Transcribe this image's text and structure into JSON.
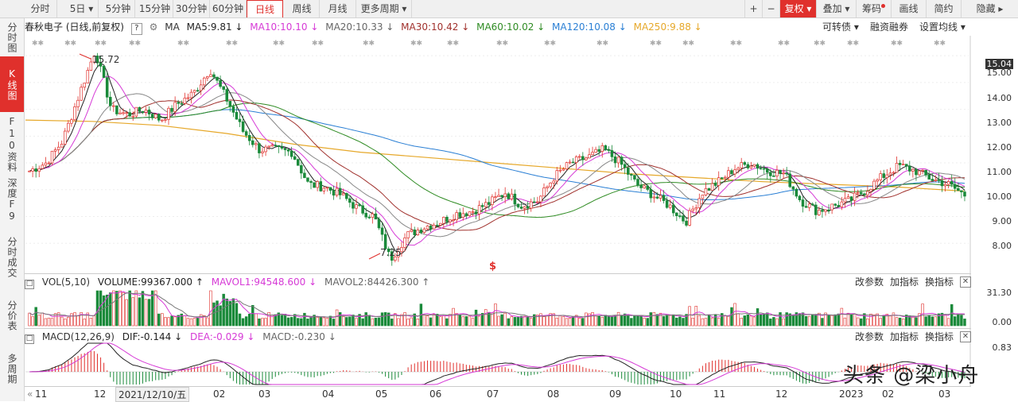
{
  "toolbar": {
    "tabs": [
      "分时",
      "5日 ▾",
      "5分钟",
      "15分钟",
      "30分钟",
      "60分钟",
      "日线",
      "周线",
      "月线",
      "更多周期 ▾"
    ],
    "active_tab": "日线",
    "right_buttons": [
      "+",
      "−",
      "复权 ▾",
      "叠加 ▾",
      "筹码",
      "画线",
      "简约",
      "隐藏 ▸"
    ]
  },
  "sidebar": [
    {
      "label": "分时图"
    },
    {
      "label": "K线图"
    },
    {
      "label": "F10资料"
    },
    {
      "label": "深度F9"
    },
    {
      "label": "分时成交"
    },
    {
      "label": "分价表"
    },
    {
      "label": "多周期"
    }
  ],
  "ma_line": {
    "stock": "春秋电子 (日线,前复权)",
    "help": "?",
    "ma_label": "MA",
    "items": [
      {
        "text": "MA5:9.81 ↓",
        "color": "#222222"
      },
      {
        "text": "MA10:10.10 ↓",
        "color": "#d63ad6"
      },
      {
        "text": "MA20:10.33 ↓",
        "color": "#666666"
      },
      {
        "text": "MA30:10.42 ↓",
        "color": "#a0302c"
      },
      {
        "text": "MA60:10.02 ↓",
        "color": "#2e8b22"
      },
      {
        "text": "MA120:10.08 ↓",
        "color": "#2a7fd4"
      },
      {
        "text": "MA250:9.88 ↓",
        "color": "#e6a82a"
      }
    ],
    "menu": [
      "可转债 ▾",
      "融资融券",
      "设置均线 ▾"
    ]
  },
  "price_axis": [
    "15.04",
    "15.00",
    "14.00",
    "13.00",
    "12.00",
    "11.00",
    "10.00",
    "9.00",
    "8.00"
  ],
  "annotations": {
    "high": "15.72",
    "low": "7.25",
    "marker": "$"
  },
  "volume_panel": {
    "items": [
      {
        "text": "VOL(5,10)",
        "color": "#333333"
      },
      {
        "text": "VOLUME:99367.000 ↑",
        "color": "#222222"
      },
      {
        "text": "MAVOL1:94548.600 ↓",
        "color": "#d63ad6"
      },
      {
        "text": "MAVOL2:84426.300 ↑",
        "color": "#666666"
      }
    ],
    "axis": [
      "31.30",
      "0.00"
    ],
    "buttons": [
      "改参数",
      "加指标",
      "换指标"
    ]
  },
  "macd_panel": {
    "items": [
      {
        "text": "MACD(12,26,9)",
        "color": "#333333"
      },
      {
        "text": "DIF:-0.144 ↓",
        "color": "#222222"
      },
      {
        "text": "DEA:-0.029 ↓",
        "color": "#d63ad6"
      },
      {
        "text": "MACD:-0.230 ↓",
        "color": "#666666"
      }
    ],
    "axis": [
      "0.83"
    ],
    "buttons": [
      "改参数",
      "加指标",
      "换指标"
    ]
  },
  "x_axis": [
    "11",
    "12",
    "2021/12/10/五",
    "02",
    "03",
    "04",
    "05",
    "06",
    "07",
    "08",
    "09",
    "10",
    "11",
    "12",
    "2023",
    "02",
    "03"
  ],
  "watermark": "头条 @梁小舟",
  "chart_data": {
    "type": "candlestick",
    "x_labels": [
      "11",
      "12",
      "02",
      "03",
      "04",
      "05",
      "06",
      "07",
      "08",
      "09",
      "10",
      "11",
      "12",
      "2023",
      "02",
      "03"
    ],
    "ylim": [
      7.0,
      15.3
    ],
    "price_path": [
      10.7,
      11.0,
      11.8,
      13.5,
      15.2,
      13.0,
      12.8,
      13.0,
      12.6,
      13.2,
      13.6,
      14.5,
      13.4,
      12.2,
      11.5,
      11.5,
      11.4,
      10.2,
      10.1,
      9.8,
      9.3,
      9.0,
      7.4,
      8.3,
      8.6,
      8.8,
      9.1,
      9.2,
      9.5,
      9.9,
      9.4,
      9.6,
      10.5,
      11.0,
      11.2,
      11.5,
      11.0,
      10.2,
      9.8,
      9.4,
      8.8,
      9.9,
      10.3,
      10.8,
      11.0,
      10.7,
      10.6,
      9.6,
      9.2,
      9.4,
      9.6,
      10.0,
      10.5,
      10.9,
      10.7,
      10.4,
      10.2,
      9.8
    ],
    "ma250": [
      12.6,
      12.55,
      12.4,
      12.1,
      11.7,
      11.4,
      11.2,
      11.0,
      10.8,
      10.6,
      10.45,
      10.3,
      10.2,
      10.1,
      9.95
    ],
    "volume_max": 31.3,
    "macd_max": 0.83
  }
}
